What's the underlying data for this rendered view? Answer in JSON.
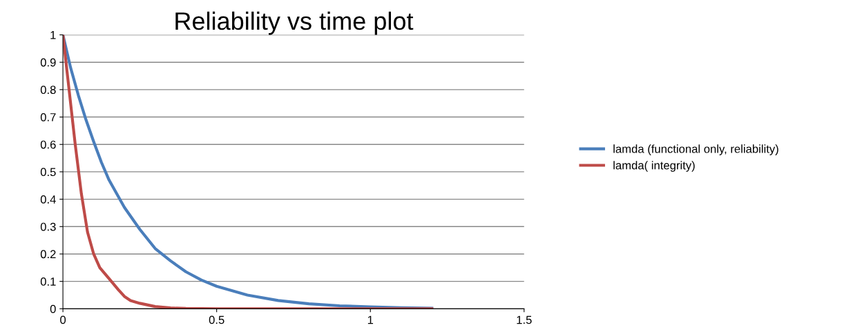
{
  "chart_data": {
    "type": "line",
    "title": "Reliability vs time plot",
    "xlim": [
      0,
      1.5
    ],
    "xticks": [
      0,
      0.5,
      1,
      1.5
    ],
    "ylim": [
      0,
      1
    ],
    "yticks": [
      0,
      0.1,
      0.2,
      0.3,
      0.4,
      0.5,
      0.6,
      0.7,
      0.8,
      0.9,
      1
    ],
    "grid": "y",
    "legend": "right",
    "marker": "none",
    "line_style": "solid",
    "series": [
      {
        "name": "lamda (functional only, reliability)",
        "color": "#4a7ebb",
        "x": [
          0,
          0.025,
          0.05,
          0.075,
          0.1,
          0.125,
          0.15,
          0.2,
          0.25,
          0.3,
          0.35,
          0.4,
          0.45,
          0.5,
          0.6,
          0.7,
          0.8,
          0.9,
          1.0,
          1.1,
          1.2
        ],
        "values": [
          1,
          0.88,
          0.78,
          0.69,
          0.61,
          0.535,
          0.47,
          0.37,
          0.29,
          0.22,
          0.175,
          0.135,
          0.105,
          0.082,
          0.05,
          0.03,
          0.018,
          0.011,
          0.007,
          0.004,
          0.002
        ]
      },
      {
        "name": "lamda( integrity)",
        "color": "#be4b48",
        "x": [
          0,
          0.02,
          0.04,
          0.06,
          0.08,
          0.1,
          0.12,
          0.15,
          0.18,
          0.2,
          0.22,
          0.25,
          0.3,
          0.35,
          0.4,
          0.5,
          0.7,
          1.0,
          1.2
        ],
        "values": [
          1,
          0.8,
          0.6,
          0.42,
          0.28,
          0.2,
          0.15,
          0.11,
          0.07,
          0.045,
          0.03,
          0.02,
          0.008,
          0.003,
          0.001,
          0,
          0,
          0,
          0
        ]
      }
    ]
  }
}
